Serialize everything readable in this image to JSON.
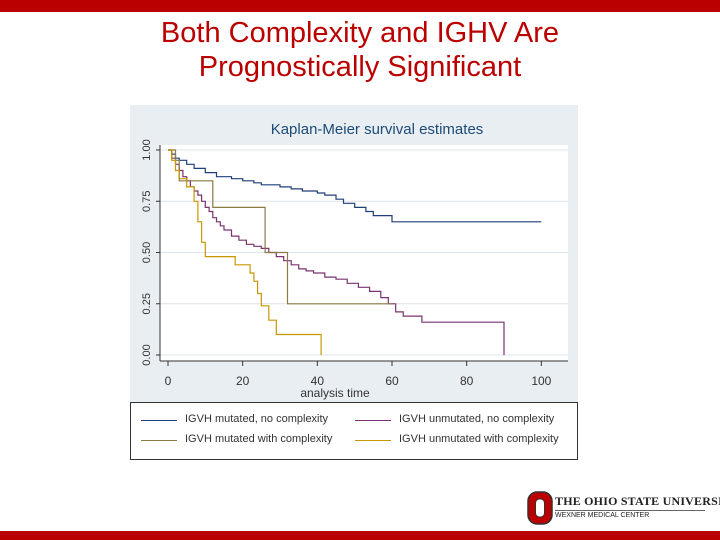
{
  "slide": {
    "title_line1": "Both Complexity and IGHV Are",
    "title_line2": "Prognostically Significant",
    "accent_color": "#bb0000"
  },
  "chart_data": {
    "type": "line",
    "subtype": "step",
    "title": "Kaplan-Meier survival estimates",
    "xlabel": "analysis time",
    "ylabel": "",
    "xlim": [
      0,
      105
    ],
    "ylim": [
      0,
      1
    ],
    "xticks": [
      0,
      20,
      40,
      60,
      80,
      100
    ],
    "xtick_labels": [
      "0",
      "20",
      "40",
      "60",
      "80",
      "100"
    ],
    "yticks": [
      0,
      0.25,
      0.5,
      0.75,
      1.0
    ],
    "ytick_labels": [
      "0.00",
      "0.25",
      "0.50",
      "0.75",
      "1.00"
    ],
    "grid": true,
    "legend_position": "bottom",
    "series": [
      {
        "name": "IGVH mutated, no complexity",
        "color": "#1f3f7a",
        "points": [
          [
            0,
            1.0
          ],
          [
            1,
            0.98
          ],
          [
            2,
            0.96
          ],
          [
            3,
            0.95
          ],
          [
            5,
            0.93
          ],
          [
            7,
            0.91
          ],
          [
            10,
            0.89
          ],
          [
            13,
            0.87
          ],
          [
            17,
            0.86
          ],
          [
            20,
            0.85
          ],
          [
            23,
            0.84
          ],
          [
            25,
            0.83
          ],
          [
            30,
            0.82
          ],
          [
            33,
            0.81
          ],
          [
            36,
            0.8
          ],
          [
            40,
            0.79
          ],
          [
            42,
            0.78
          ],
          [
            45,
            0.76
          ],
          [
            47,
            0.74
          ],
          [
            50,
            0.72
          ],
          [
            53,
            0.7
          ],
          [
            55,
            0.68
          ],
          [
            60,
            0.65
          ],
          [
            100,
            0.65
          ]
        ]
      },
      {
        "name": "IGVH unmutated, no complexity",
        "color": "#7a3370",
        "points": [
          [
            0,
            1.0
          ],
          [
            1,
            0.96
          ],
          [
            2,
            0.93
          ],
          [
            3,
            0.9
          ],
          [
            4,
            0.87
          ],
          [
            5,
            0.85
          ],
          [
            6,
            0.82
          ],
          [
            7,
            0.8
          ],
          [
            8,
            0.78
          ],
          [
            9,
            0.75
          ],
          [
            10,
            0.72
          ],
          [
            11,
            0.7
          ],
          [
            12,
            0.67
          ],
          [
            13,
            0.65
          ],
          [
            14,
            0.63
          ],
          [
            15,
            0.61
          ],
          [
            17,
            0.58
          ],
          [
            19,
            0.56
          ],
          [
            21,
            0.54
          ],
          [
            23,
            0.53
          ],
          [
            25,
            0.52
          ],
          [
            27,
            0.5
          ],
          [
            29,
            0.48
          ],
          [
            31,
            0.46
          ],
          [
            33,
            0.44
          ],
          [
            35,
            0.42
          ],
          [
            37,
            0.41
          ],
          [
            39,
            0.4
          ],
          [
            42,
            0.38
          ],
          [
            45,
            0.37
          ],
          [
            48,
            0.35
          ],
          [
            51,
            0.33
          ],
          [
            54,
            0.31
          ],
          [
            57,
            0.28
          ],
          [
            59,
            0.25
          ],
          [
            61,
            0.21
          ],
          [
            63,
            0.19
          ],
          [
            68,
            0.16
          ],
          [
            90,
            0.16
          ],
          [
            90,
            0.0
          ]
        ]
      },
      {
        "name": "IGVH mutated with complexity",
        "color": "#8a7a44",
        "points": [
          [
            0,
            1.0
          ],
          [
            2,
            0.95
          ],
          [
            3,
            0.85
          ],
          [
            12,
            0.85
          ],
          [
            12,
            0.72
          ],
          [
            26,
            0.72
          ],
          [
            26,
            0.5
          ],
          [
            32,
            0.5
          ],
          [
            32,
            0.25
          ],
          [
            60,
            0.25
          ]
        ]
      },
      {
        "name": "IGVH unmutated with complexity",
        "color": "#c99700",
        "points": [
          [
            0,
            1.0
          ],
          [
            1,
            0.95
          ],
          [
            2,
            0.9
          ],
          [
            3,
            0.86
          ],
          [
            5,
            0.82
          ],
          [
            7,
            0.75
          ],
          [
            8,
            0.65
          ],
          [
            9,
            0.55
          ],
          [
            10,
            0.48
          ],
          [
            18,
            0.48
          ],
          [
            18,
            0.44
          ],
          [
            22,
            0.44
          ],
          [
            22,
            0.4
          ],
          [
            23,
            0.36
          ],
          [
            24,
            0.3
          ],
          [
            25,
            0.24
          ],
          [
            27,
            0.17
          ],
          [
            29,
            0.12
          ],
          [
            29,
            0.1
          ],
          [
            41,
            0.1
          ],
          [
            41,
            0.0
          ]
        ]
      }
    ]
  },
  "legend": {
    "items": [
      {
        "label": "IGVH mutated, no complexity",
        "color": "#1f3f7a"
      },
      {
        "label": "IGVH unmutated, no complexity",
        "color": "#7a3370"
      },
      {
        "label": "IGVH mutated with complexity",
        "color": "#8a7a44"
      },
      {
        "label": "IGVH unmutated with complexity",
        "color": "#c99700"
      }
    ]
  },
  "logo": {
    "name": "THE OHIO STATE UNIVERSITY",
    "subtitle": "WEXNER MEDICAL CENTER",
    "letter": "O"
  }
}
